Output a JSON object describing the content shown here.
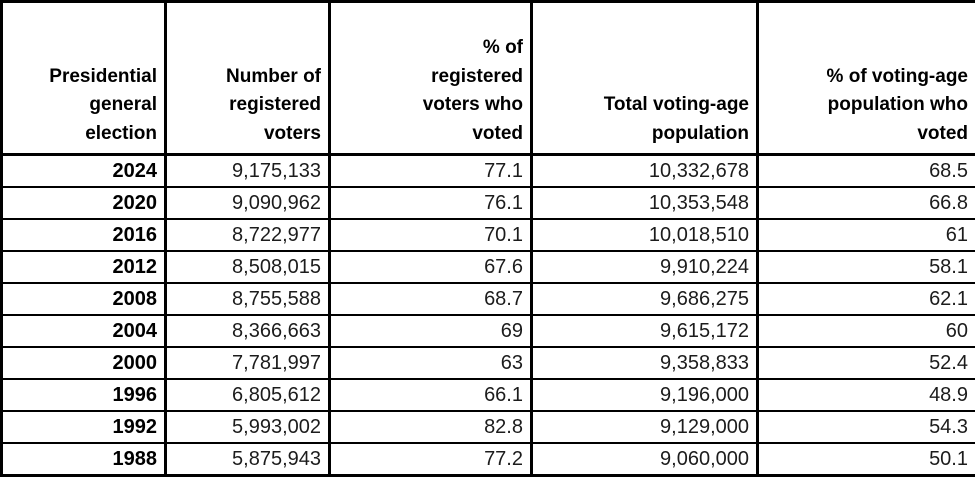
{
  "table": {
    "columns": [
      {
        "label": "Presidential\ngeneral\nelection"
      },
      {
        "label": "Number of\nregistered\nvoters"
      },
      {
        "label": "% of\nregistered\nvoters who\nvoted"
      },
      {
        "label": "Total voting-age\npopulation"
      },
      {
        "label": "% of voting-age\npopulation who\nvoted"
      }
    ],
    "rows": [
      {
        "cells": [
          "2024",
          "9,175,133",
          "77.1",
          "10,332,678",
          "68.5"
        ]
      },
      {
        "cells": [
          "2020",
          "9,090,962",
          "76.1",
          "10,353,548",
          "66.8"
        ]
      },
      {
        "cells": [
          "2016",
          "8,722,977",
          "70.1",
          "10,018,510",
          "61"
        ]
      },
      {
        "cells": [
          "2012",
          "8,508,015",
          "67.6",
          "9,910,224",
          "58.1"
        ]
      },
      {
        "cells": [
          "2008",
          "8,755,588",
          "68.7",
          "9,686,275",
          "62.1"
        ]
      },
      {
        "cells": [
          "2004",
          "8,366,663",
          "69",
          "9,615,172",
          "60"
        ]
      },
      {
        "cells": [
          "2000",
          "7,781,997",
          "63",
          "9,358,833",
          "52.4"
        ]
      },
      {
        "cells": [
          "1996",
          "6,805,612",
          "66.1",
          "9,196,000",
          "48.9"
        ]
      },
      {
        "cells": [
          "1992",
          "5,993,002",
          "82.8",
          "9,129,000",
          "54.3"
        ]
      },
      {
        "cells": [
          "1988",
          "5,875,943",
          "77.2",
          "9,060,000",
          "50.1"
        ]
      }
    ]
  },
  "chart_data": {
    "type": "table",
    "columns": [
      "Presidential general election",
      "Number of registered voters",
      "% of registered voters who voted",
      "Total voting-age population",
      "% of voting-age population who voted"
    ],
    "rows": [
      [
        2024,
        9175133,
        77.1,
        10332678,
        68.5
      ],
      [
        2020,
        9090962,
        76.1,
        10353548,
        66.8
      ],
      [
        2016,
        8722977,
        70.1,
        10018510,
        61
      ],
      [
        2012,
        8508015,
        67.6,
        9910224,
        58.1
      ],
      [
        2008,
        8755588,
        68.7,
        9686275,
        62.1
      ],
      [
        2004,
        8366663,
        69,
        9615172,
        60
      ],
      [
        2000,
        7781997,
        63,
        9358833,
        52.4
      ],
      [
        1996,
        6805612,
        66.1,
        9196000,
        48.9
      ],
      [
        1992,
        5993002,
        82.8,
        9129000,
        54.3
      ],
      [
        1988,
        5875943,
        77.2,
        9060000,
        50.1
      ]
    ],
    "grid": true,
    "notes": "All cells right-aligned; header row and year column bold"
  }
}
